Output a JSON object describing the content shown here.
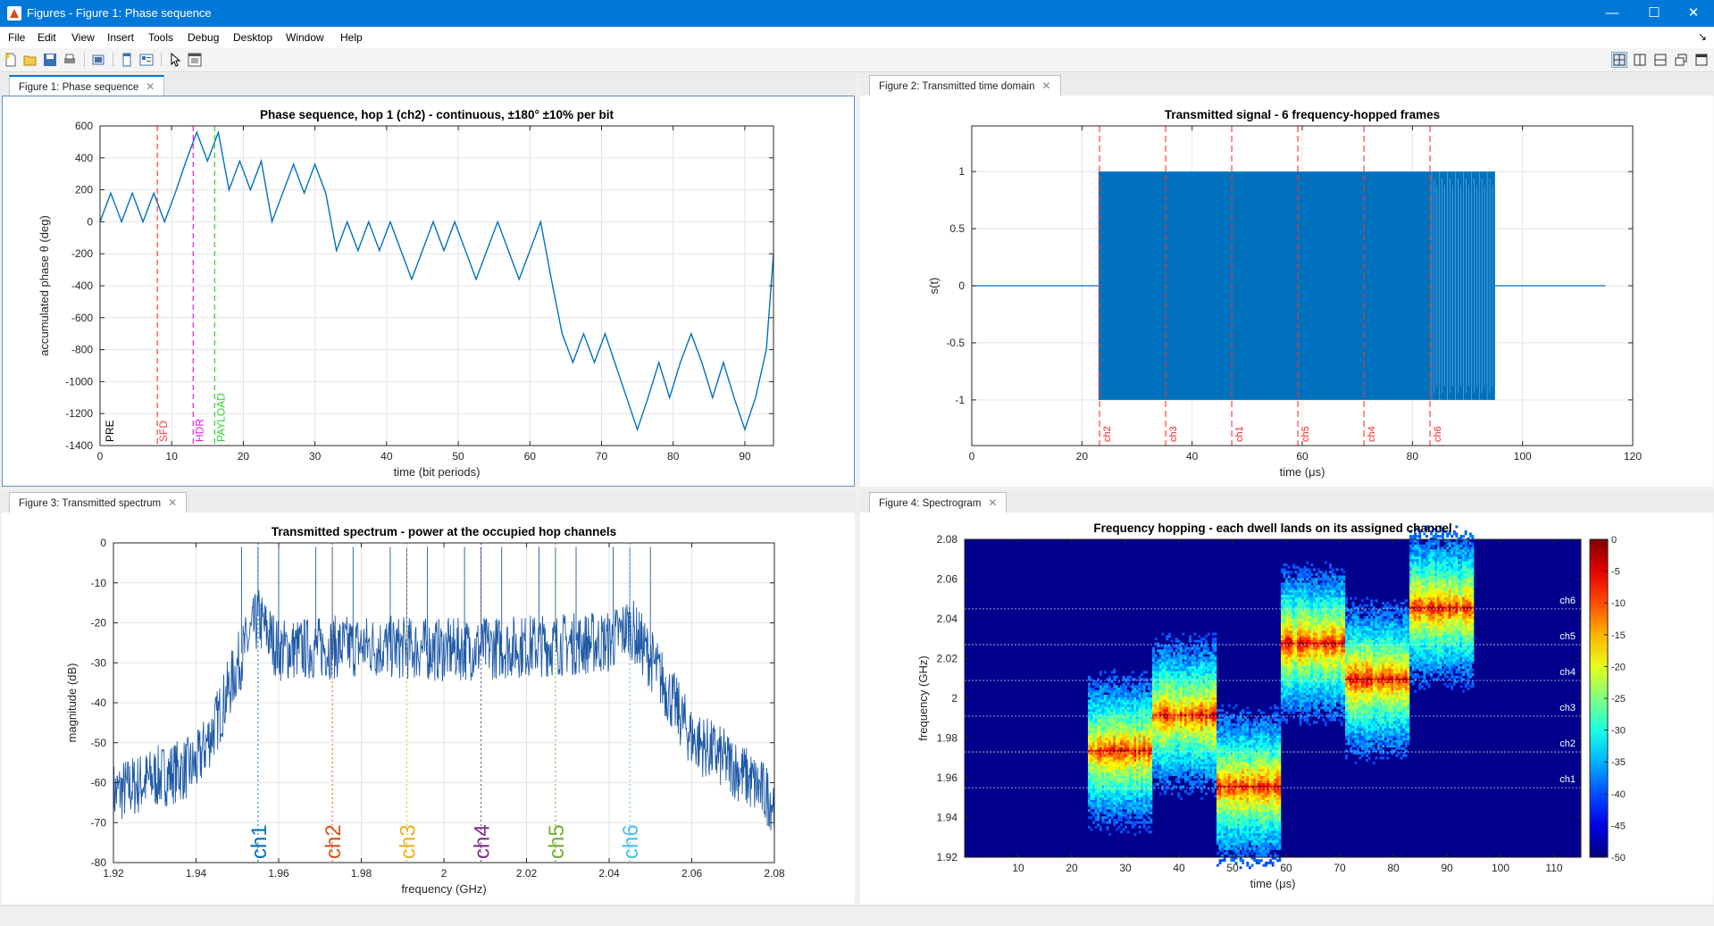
{
  "window": {
    "title": "Figures - Figure 1: Phase sequence"
  },
  "menu": [
    "File",
    "Edit",
    "View",
    "Insert",
    "Tools",
    "Debug",
    "Desktop",
    "Window",
    "Help"
  ],
  "toolbar_icons": [
    "new-figure-icon",
    "open-icon",
    "save-icon",
    "print-icon",
    "print-preview-icon",
    "dock-icon",
    "property-icon",
    "pointer-icon",
    "inspector-icon"
  ],
  "layout_icons": [
    "tile-icon",
    "left-right-icon",
    "top-bottom-icon",
    "float-icon",
    "maximize-icon"
  ],
  "tabs": {
    "fig1": "Figure 1: Phase sequence",
    "fig2": "Figure 2: Transmitted time domain",
    "fig3": "Figure 3: Transmitted spectrum",
    "fig4": "Figure 4: Spectrogram"
  },
  "chart_data": [
    {
      "type": "line",
      "title": "Phase sequence, hop 1 (ch2) - continuous, ±180° ±10% per bit",
      "xlabel": "time (bit periods)",
      "ylabel": "accumulated phase θ (deg)",
      "xlim": [
        0,
        94
      ],
      "ylim": [
        -1400,
        600
      ],
      "xticks": [
        "0",
        "10",
        "20",
        "30",
        "40",
        "50",
        "60",
        "70",
        "80",
        "90"
      ],
      "yticks": [
        "600",
        "400",
        "200",
        "0",
        "-200",
        "-400",
        "-600",
        "-800",
        "-1000",
        "-1200",
        "-1400"
      ],
      "grid": true,
      "color": "#0072bd",
      "x": [
        0,
        1.5,
        3,
        4.5,
        6,
        7.5,
        9,
        10.5,
        12,
        13.5,
        15,
        16.5,
        18,
        19.5,
        21,
        22.5,
        24,
        25.5,
        27,
        28.5,
        30,
        31.5,
        33,
        34.5,
        36,
        37.5,
        39,
        40.5,
        42,
        43.5,
        45,
        46.5,
        48,
        49.5,
        51,
        52.5,
        54,
        55.5,
        57,
        58.5,
        60,
        61.5,
        63,
        64.5,
        66,
        67.5,
        69,
        70.5,
        72,
        73.5,
        75,
        76.5,
        78,
        79.5,
        81,
        82.5,
        84,
        85.5,
        87,
        88.5,
        90,
        91.5,
        93,
        94
      ],
      "y": [
        0,
        180,
        0,
        180,
        0,
        180,
        0,
        180,
        380,
        560,
        380,
        560,
        200,
        380,
        200,
        380,
        0,
        180,
        360,
        180,
        360,
        180,
        -180,
        0,
        -180,
        0,
        -180,
        0,
        -180,
        -360,
        -180,
        0,
        -180,
        0,
        -180,
        -360,
        -180,
        0,
        -180,
        -360,
        -180,
        0,
        -360,
        -700,
        -880,
        -700,
        -880,
        -700,
        -900,
        -1100,
        -1300,
        -1100,
        -880,
        -1100,
        -880,
        -700,
        -880,
        -1100,
        -880,
        -1100,
        -1300,
        -1100,
        -800,
        -200
      ],
      "markers": [
        {
          "x": 8,
          "label": "SFD",
          "color": "#ff4040"
        },
        {
          "x": 13,
          "label": "HDR",
          "color": "#e020e0"
        },
        {
          "x": 16,
          "label": "PAYLOAD",
          "color": "#30d030"
        }
      ],
      "pre_label": "PRE"
    },
    {
      "type": "line",
      "title": "Transmitted signal - 6 frequency-hopped frames",
      "xlabel": "time (μs)",
      "ylabel": "s(t)",
      "xlim": [
        0,
        120
      ],
      "ylim": [
        -1.4,
        1.4
      ],
      "xticks": [
        "0",
        "20",
        "40",
        "60",
        "80",
        "100",
        "120"
      ],
      "yticks": [
        "1",
        "0.5",
        "0",
        "-0.5",
        "-1"
      ],
      "grid": true,
      "signal_start": 23,
      "signal_end": 95,
      "signal_span": [
        23,
        95
      ],
      "idle_end": 115,
      "hop_markers": [
        {
          "x": 23.2,
          "label": "ch2"
        },
        {
          "x": 35.2,
          "label": "ch3"
        },
        {
          "x": 47.2,
          "label": "ch1"
        },
        {
          "x": 59.2,
          "label": "ch5"
        },
        {
          "x": 71.2,
          "label": "ch4"
        },
        {
          "x": 83.2,
          "label": "ch6"
        }
      ]
    },
    {
      "type": "line",
      "title": "Transmitted spectrum - power at the occupied hop channels",
      "xlabel": "frequency (GHz)",
      "ylabel": "magnitude (dB)",
      "xlim": [
        1.92,
        2.08
      ],
      "ylim": [
        -80,
        0
      ],
      "xticks": [
        "1.92",
        "1.94",
        "1.96",
        "1.98",
        "2",
        "2.02",
        "2.04",
        "2.06",
        "2.08"
      ],
      "yticks": [
        "0",
        "-10",
        "-20",
        "-30",
        "-40",
        "-50",
        "-60",
        "-70",
        "-80"
      ],
      "grid": true,
      "envelope": {
        "x": [
          1.92,
          1.93,
          1.94,
          1.945,
          1.95,
          1.955,
          1.96,
          1.98,
          2.0,
          2.02,
          2.04,
          2.045,
          2.05,
          2.055,
          2.06,
          2.07,
          2.08
        ],
        "y": [
          -62,
          -58,
          -55,
          -44,
          -30,
          -18,
          -26,
          -25,
          -26,
          -25,
          -24,
          -20,
          -28,
          -38,
          -48,
          -55,
          -64
        ]
      },
      "channels": [
        {
          "label": "ch1",
          "f": 1.955,
          "color": "#0072bd"
        },
        {
          "label": "ch2",
          "f": 1.973,
          "color": "#d95319"
        },
        {
          "label": "ch3",
          "f": 1.991,
          "color": "#edb120"
        },
        {
          "label": "ch4",
          "f": 2.009,
          "color": "#7e2f8e"
        },
        {
          "label": "ch5",
          "f": 2.027,
          "color": "#77ac30"
        },
        {
          "label": "ch6",
          "f": 2.045,
          "color": "#4dbeee"
        }
      ],
      "peaks": [
        1.951,
        1.955,
        1.96,
        1.969,
        1.973,
        1.978,
        1.987,
        1.991,
        1.996,
        2.005,
        2.009,
        2.014,
        2.023,
        2.027,
        2.032,
        2.041,
        2.045,
        2.05
      ]
    },
    {
      "type": "heatmap",
      "title": "Frequency hopping - each dwell lands on its assigned channel",
      "xlabel": "time (μs)",
      "ylabel": "frequency (GHz)",
      "xlim": [
        0,
        115
      ],
      "ylim": [
        1.92,
        2.08
      ],
      "xticks": [
        "10",
        "20",
        "30",
        "40",
        "50",
        "60",
        "70",
        "80",
        "90",
        "100",
        "110"
      ],
      "yticks": [
        "2.08",
        "2.06",
        "2.04",
        "2.02",
        "2",
        "1.98",
        "1.96",
        "1.94",
        "1.92"
      ],
      "colorbar": {
        "ticks": [
          "0",
          "-5",
          "-10",
          "-15",
          "-20",
          "-25",
          "-30",
          "-35",
          "-40",
          "-45",
          "-50"
        ]
      },
      "channel_lines": [
        {
          "label": "ch6",
          "f": 2.045
        },
        {
          "label": "ch5",
          "f": 2.027
        },
        {
          "label": "ch4",
          "f": 2.009
        },
        {
          "label": "ch3",
          "f": 1.991
        },
        {
          "label": "ch2",
          "f": 1.973
        },
        {
          "label": "ch1",
          "f": 1.955
        }
      ],
      "dwells": [
        {
          "t0": 23,
          "t1": 35,
          "f": 1.973
        },
        {
          "t0": 35,
          "t1": 47,
          "f": 1.991
        },
        {
          "t0": 47,
          "t1": 59,
          "f": 1.955
        },
        {
          "t0": 59,
          "t1": 71,
          "f": 2.027
        },
        {
          "t0": 71,
          "t1": 83,
          "f": 2.009
        },
        {
          "t0": 83,
          "t1": 95,
          "f": 2.045
        }
      ]
    }
  ]
}
